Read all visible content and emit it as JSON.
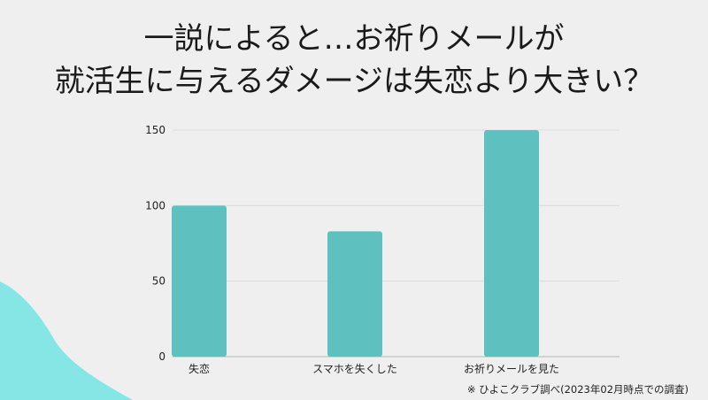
{
  "title": {
    "line1": "一説によると…お祈りメールが",
    "line2": "就活生に与えるダメージは失恋より大きい？"
  },
  "chart_data": {
    "type": "bar",
    "categories": [
      "失恋",
      "スマホを失くした",
      "お祈りメールを見た"
    ],
    "values": [
      100,
      83,
      150
    ],
    "ylim": [
      0,
      150
    ],
    "yticks": [
      0,
      50,
      100,
      150
    ],
    "grid": true,
    "bar_color": "#5fc1bf"
  },
  "footnote": "※ ひよこクラブ調べ(2023年02月時点での調査)",
  "colors": {
    "background": "#efefef",
    "wave": "#86e6e6",
    "bar": "#5fc1bf",
    "gridline": "#dcdcdc"
  }
}
